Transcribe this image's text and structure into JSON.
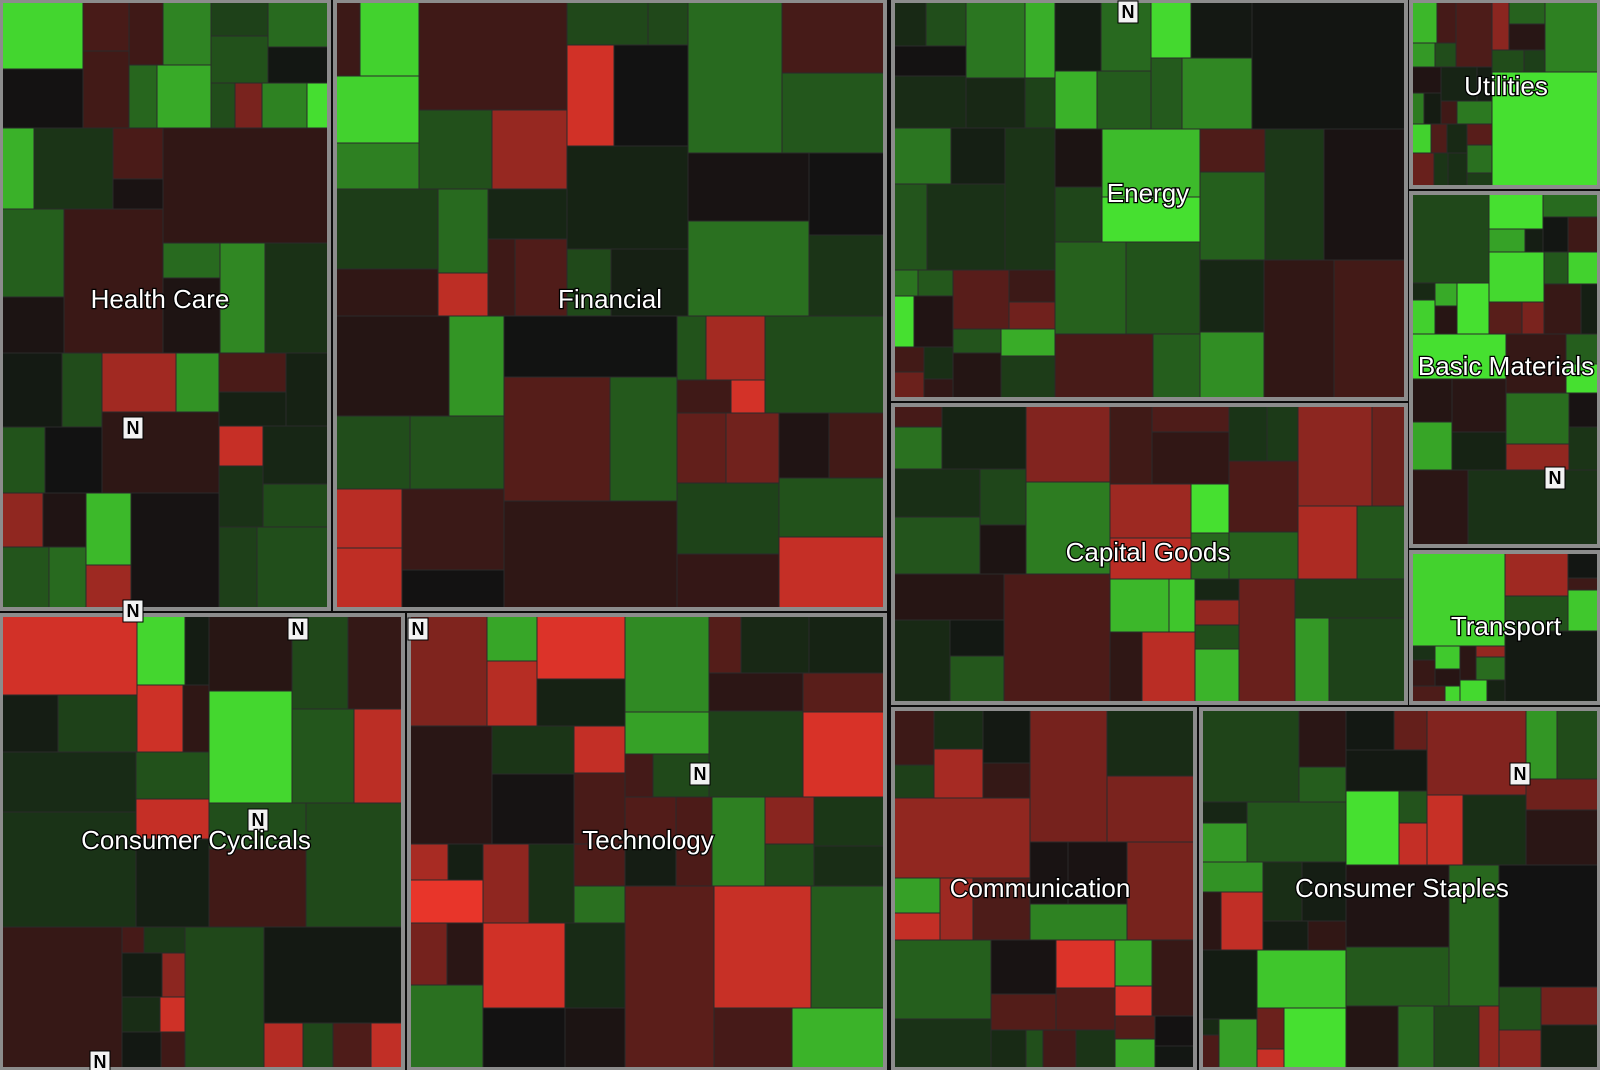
{
  "chart_data": {
    "type": "heatmap",
    "variant": "treemap",
    "title": "",
    "color_scale": {
      "negative": "#e8352a",
      "neutral": "#121212",
      "positive": "#46e030",
      "border": "#8c8c8c"
    },
    "badge_text": "N",
    "sectors": [
      {
        "label": "Health Care"
      },
      {
        "label": "Financial"
      },
      {
        "label": "Energy"
      },
      {
        "label": "Utilities"
      },
      {
        "label": "Basic Materials"
      },
      {
        "label": "Capital Goods"
      },
      {
        "label": "Transport"
      },
      {
        "label": "Consumer Cyclicals"
      },
      {
        "label": "Technology"
      },
      {
        "label": "Communication"
      },
      {
        "label": "Consumer Staples"
      }
    ]
  }
}
